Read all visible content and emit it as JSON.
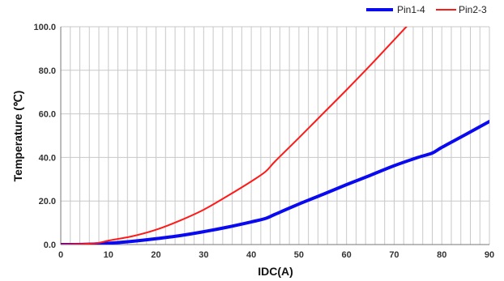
{
  "chart_data": {
    "type": "line",
    "xlabel": "IDC(A)",
    "ylabel": "Temperature (℃)",
    "xlim": [
      0,
      90
    ],
    "ylim": [
      0,
      100
    ],
    "x_ticks": [
      "0",
      "10",
      "20",
      "30",
      "40",
      "50",
      "60",
      "70",
      "80",
      "90"
    ],
    "y_ticks": [
      "0.0",
      "20.0",
      "40.0",
      "60.0",
      "80.0",
      "100.0"
    ],
    "grid": true,
    "minor_x_step": 2,
    "legend_position": "top-right",
    "series": [
      {
        "name": "Pin1-4",
        "color": "#0a0af0",
        "line_width": "thick",
        "x": [
          0,
          5,
          10,
          15,
          20,
          25,
          30,
          35,
          40,
          43,
          45,
          50,
          55,
          60,
          65,
          70,
          75,
          78,
          80,
          85,
          90
        ],
        "y": [
          0,
          0.1,
          0.6,
          1.5,
          2.7,
          4.1,
          5.9,
          8.0,
          10.4,
          12.0,
          13.9,
          18.6,
          23.0,
          27.5,
          31.8,
          36.2,
          40.0,
          42.0,
          44.6,
          50.5,
          56.5
        ]
      },
      {
        "name": "Pin2-3",
        "color": "#ff1a1a",
        "line_width": "thin",
        "x": [
          0,
          5,
          8,
          10,
          15,
          20,
          25,
          30,
          35,
          40,
          43,
          45,
          50,
          55,
          60,
          65,
          70,
          73
        ],
        "y": [
          0,
          0.3,
          0.8,
          1.8,
          3.8,
          6.8,
          11.0,
          16.0,
          22.3,
          29.0,
          33.5,
          38.2,
          49.0,
          60.0,
          71.0,
          82.3,
          94.0,
          101.0
        ]
      }
    ]
  }
}
